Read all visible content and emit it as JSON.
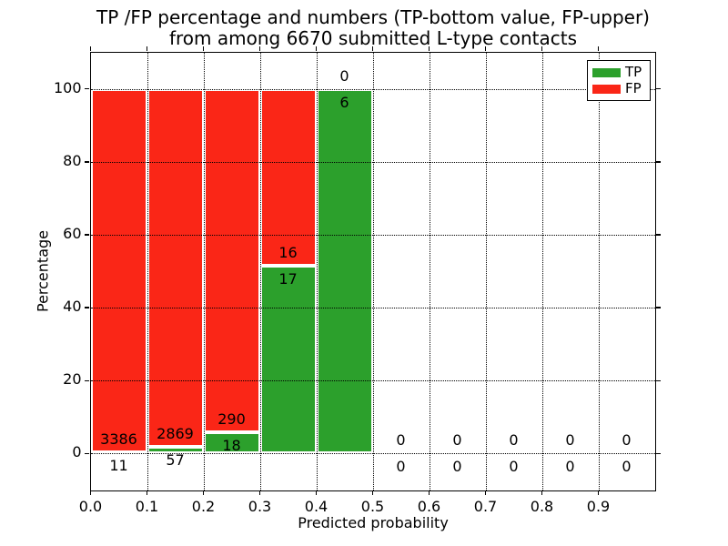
{
  "figure": {
    "title_line1": "TP /FP percentage and numbers (TP-bottom value, FP-upper)",
    "title_line2": "from among 6670 submitted L-type contacts",
    "xlabel": "Predicted probability",
    "ylabel": "Percentage"
  },
  "legend": {
    "items": [
      {
        "label": "TP",
        "color": "#2ca02c"
      },
      {
        "label": "FP",
        "color": "#fa2617"
      }
    ]
  },
  "chart_data": {
    "type": "bar",
    "stacked": true,
    "title": "TP /FP percentage and numbers (TP-bottom value, FP-upper)\nfrom among 6670 submitted L-type contacts",
    "xlabel": "Predicted probability",
    "ylabel": "Percentage",
    "xlim": [
      0.0,
      1.0
    ],
    "ylim": [
      -10,
      110
    ],
    "xticks": [
      "0.0",
      "0.1",
      "0.2",
      "0.3",
      "0.4",
      "0.5",
      "0.6",
      "0.7",
      "0.8",
      "0.9"
    ],
    "yticks": [
      0,
      20,
      40,
      60,
      80,
      100
    ],
    "grid": true,
    "gridstyle": "dotted",
    "legend_position": "upper right",
    "bin_edges": [
      0.0,
      0.1,
      0.2,
      0.3,
      0.4,
      0.5,
      0.6,
      0.7,
      0.8,
      0.9,
      1.0
    ],
    "bar_heights_unit": "percent of bin total, stacked to 100%",
    "series": [
      {
        "name": "TP",
        "color": "#2ca02c",
        "values": [
          11,
          57,
          18,
          17,
          6,
          0,
          0,
          0,
          0,
          0
        ]
      },
      {
        "name": "FP",
        "color": "#fa2617",
        "values": [
          3386,
          2869,
          290,
          16,
          0,
          0,
          0,
          0,
          0,
          0
        ]
      }
    ],
    "tp_percent_per_bin": [
      0.32,
      1.95,
      5.84,
      51.52,
      100.0,
      0,
      0,
      0,
      0,
      0
    ],
    "total_submitted_contacts": 6670
  }
}
